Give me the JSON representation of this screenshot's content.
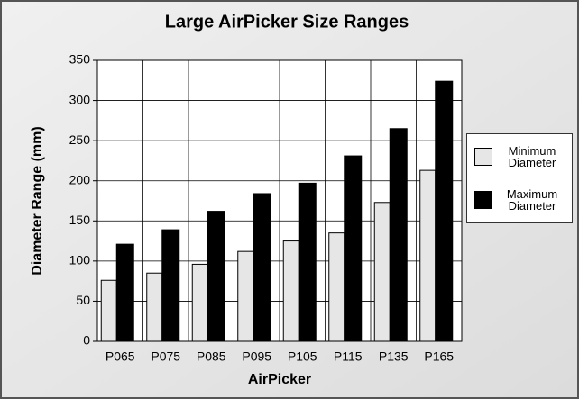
{
  "chart_data": {
    "type": "bar",
    "title": "Large AirPicker Size Ranges",
    "x_label": "AirPicker",
    "y_label": "Diameter Range (mm)",
    "categories": [
      "P065",
      "P075",
      "P085",
      "P095",
      "P105",
      "P115",
      "P135",
      "P165"
    ],
    "series": [
      {
        "name": "Minimum Diameter",
        "color": "#e6e6e6",
        "values": [
          76,
          85,
          96,
          112,
          125,
          135,
          173,
          213
        ]
      },
      {
        "name": "Maximum Diameter",
        "color": "#000000",
        "values": [
          121,
          139,
          162,
          184,
          197,
          231,
          265,
          324
        ]
      }
    ],
    "ylim": [
      0,
      350
    ],
    "yticks": [
      0,
      50,
      100,
      150,
      200,
      250,
      300,
      350
    ],
    "grid": true,
    "legend": "right"
  }
}
